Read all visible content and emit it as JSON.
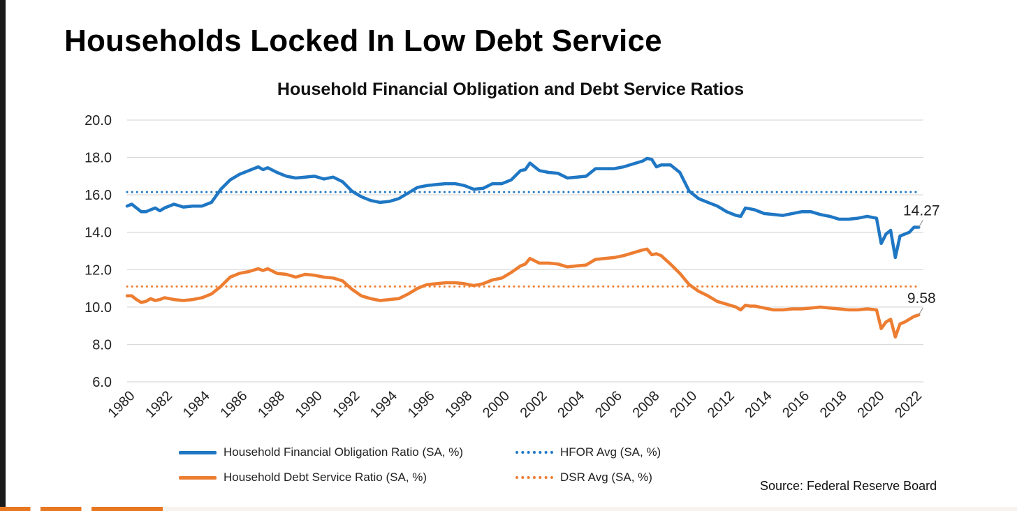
{
  "headline": "Households Locked In Low Debt Service",
  "source": "Source: Federal Reserve Board",
  "colors": {
    "hfor": "#1f77c4",
    "dsr": "#ed7d31",
    "grid": "#d9d9d9",
    "axis_text": "#222222"
  },
  "chart_data": {
    "type": "line",
    "title": "Household Financial Obligation and Debt Service Ratios",
    "xlabel": "",
    "ylabel": "",
    "xlim": [
      1980,
      2022.5
    ],
    "ylim": [
      6.0,
      20.0
    ],
    "y_ticks": [
      "6.0",
      "8.0",
      "10.0",
      "12.0",
      "14.0",
      "16.0",
      "18.0",
      "20.0"
    ],
    "x_ticks": [
      "1980",
      "1982",
      "1984",
      "1986",
      "1988",
      "1990",
      "1992",
      "1994",
      "1996",
      "1998",
      "2000",
      "2002",
      "2004",
      "2006",
      "2008",
      "2010",
      "2012",
      "2014",
      "2016",
      "2018",
      "2020",
      "2022"
    ],
    "grid": true,
    "legend_position": "bottom",
    "series": [
      {
        "name": "Household Financial Obligation Ratio (SA, %)",
        "style": "solid",
        "color": "#1f77c4",
        "end_label": "14.27",
        "x": [
          1980.0,
          1980.25,
          1980.5,
          1980.75,
          1981.0,
          1981.25,
          1981.5,
          1981.75,
          1982.0,
          1982.5,
          1983.0,
          1983.5,
          1984.0,
          1984.5,
          1985.0,
          1985.5,
          1986.0,
          1986.5,
          1987.0,
          1987.25,
          1987.5,
          1988.0,
          1988.5,
          1989.0,
          1989.5,
          1990.0,
          1990.5,
          1991.0,
          1991.5,
          1992.0,
          1992.5,
          1993.0,
          1993.5,
          1994.0,
          1994.5,
          1995.0,
          1995.5,
          1996.0,
          1996.5,
          1997.0,
          1997.5,
          1998.0,
          1998.5,
          1999.0,
          1999.5,
          2000.0,
          2000.5,
          2001.0,
          2001.25,
          2001.5,
          2002.0,
          2002.5,
          2003.0,
          2003.5,
          2004.0,
          2004.5,
          2005.0,
          2005.5,
          2006.0,
          2006.5,
          2007.0,
          2007.5,
          2007.75,
          2008.0,
          2008.25,
          2008.5,
          2009.0,
          2009.5,
          2010.0,
          2010.5,
          2011.0,
          2011.5,
          2012.0,
          2012.5,
          2012.75,
          2013.0,
          2013.25,
          2013.5,
          2014.0,
          2014.5,
          2015.0,
          2015.5,
          2016.0,
          2016.5,
          2017.0,
          2017.5,
          2018.0,
          2018.5,
          2019.0,
          2019.5,
          2020.0,
          2020.25,
          2020.5,
          2020.75,
          2021.0,
          2021.25,
          2021.5,
          2021.75,
          2022.0,
          2022.25
        ],
        "values": [
          15.4,
          15.5,
          15.3,
          15.1,
          15.1,
          15.2,
          15.3,
          15.15,
          15.3,
          15.5,
          15.35,
          15.4,
          15.4,
          15.6,
          16.3,
          16.8,
          17.1,
          17.3,
          17.5,
          17.35,
          17.45,
          17.2,
          17.0,
          16.9,
          16.95,
          17.0,
          16.85,
          16.95,
          16.7,
          16.2,
          15.9,
          15.7,
          15.6,
          15.65,
          15.8,
          16.1,
          16.4,
          16.5,
          16.55,
          16.6,
          16.6,
          16.5,
          16.3,
          16.35,
          16.6,
          16.6,
          16.8,
          17.3,
          17.35,
          17.7,
          17.3,
          17.2,
          17.15,
          16.9,
          16.95,
          17.0,
          17.4,
          17.4,
          17.4,
          17.5,
          17.65,
          17.8,
          17.95,
          17.9,
          17.5,
          17.6,
          17.6,
          17.2,
          16.2,
          15.8,
          15.6,
          15.4,
          15.1,
          14.9,
          14.85,
          15.3,
          15.25,
          15.2,
          15.0,
          14.95,
          14.9,
          15.0,
          15.1,
          15.1,
          14.95,
          14.85,
          14.7,
          14.7,
          14.75,
          14.85,
          14.75,
          13.4,
          13.9,
          14.1,
          12.65,
          13.8,
          13.9,
          14.0,
          14.27,
          14.27
        ]
      },
      {
        "name": "HFOR Avg (SA, %)",
        "style": "dotted",
        "color": "#1f77c4",
        "x": [
          1980.0,
          2022.25
        ],
        "values": [
          16.15,
          16.15
        ]
      },
      {
        "name": "Household Debt Service Ratio (SA, %)",
        "style": "solid",
        "color": "#ed7d31",
        "end_label": "9.58",
        "x": [
          1980.0,
          1980.25,
          1980.5,
          1980.75,
          1981.0,
          1981.25,
          1981.5,
          1981.75,
          1982.0,
          1982.5,
          1983.0,
          1983.5,
          1984.0,
          1984.5,
          1985.0,
          1985.5,
          1986.0,
          1986.5,
          1987.0,
          1987.25,
          1987.5,
          1988.0,
          1988.5,
          1989.0,
          1989.5,
          1990.0,
          1990.5,
          1991.0,
          1991.5,
          1992.0,
          1992.5,
          1993.0,
          1993.5,
          1994.0,
          1994.5,
          1995.0,
          1995.5,
          1996.0,
          1996.5,
          1997.0,
          1997.5,
          1998.0,
          1998.5,
          1999.0,
          1999.5,
          2000.0,
          2000.5,
          2001.0,
          2001.25,
          2001.5,
          2002.0,
          2002.5,
          2003.0,
          2003.5,
          2004.0,
          2004.5,
          2005.0,
          2005.5,
          2006.0,
          2006.5,
          2007.0,
          2007.5,
          2007.75,
          2008.0,
          2008.25,
          2008.5,
          2009.0,
          2009.5,
          2010.0,
          2010.5,
          2011.0,
          2011.5,
          2012.0,
          2012.5,
          2012.75,
          2013.0,
          2013.25,
          2013.5,
          2014.0,
          2014.5,
          2015.0,
          2015.5,
          2016.0,
          2016.5,
          2017.0,
          2017.5,
          2018.0,
          2018.5,
          2019.0,
          2019.5,
          2020.0,
          2020.25,
          2020.5,
          2020.75,
          2021.0,
          2021.25,
          2021.5,
          2021.75,
          2022.0,
          2022.25
        ],
        "values": [
          10.6,
          10.6,
          10.4,
          10.25,
          10.3,
          10.45,
          10.35,
          10.4,
          10.5,
          10.4,
          10.35,
          10.4,
          10.5,
          10.7,
          11.1,
          11.6,
          11.8,
          11.9,
          12.05,
          11.95,
          12.05,
          11.8,
          11.75,
          11.6,
          11.75,
          11.7,
          11.6,
          11.55,
          11.4,
          10.95,
          10.6,
          10.45,
          10.35,
          10.4,
          10.45,
          10.7,
          11.0,
          11.2,
          11.25,
          11.3,
          11.3,
          11.25,
          11.15,
          11.25,
          11.45,
          11.55,
          11.85,
          12.2,
          12.3,
          12.6,
          12.35,
          12.35,
          12.3,
          12.15,
          12.2,
          12.25,
          12.55,
          12.6,
          12.65,
          12.75,
          12.9,
          13.05,
          13.1,
          12.8,
          12.85,
          12.75,
          12.3,
          11.8,
          11.2,
          10.85,
          10.6,
          10.3,
          10.15,
          10.0,
          9.85,
          10.1,
          10.05,
          10.05,
          9.95,
          9.85,
          9.85,
          9.9,
          9.9,
          9.95,
          10.0,
          9.95,
          9.9,
          9.85,
          9.85,
          9.9,
          9.85,
          8.85,
          9.2,
          9.35,
          8.4,
          9.1,
          9.2,
          9.35,
          9.5,
          9.58
        ]
      },
      {
        "name": "DSR Avg (SA, %)",
        "style": "dotted",
        "color": "#ed7d31",
        "x": [
          1980.0,
          2022.25
        ],
        "values": [
          11.1,
          11.1
        ]
      }
    ]
  }
}
